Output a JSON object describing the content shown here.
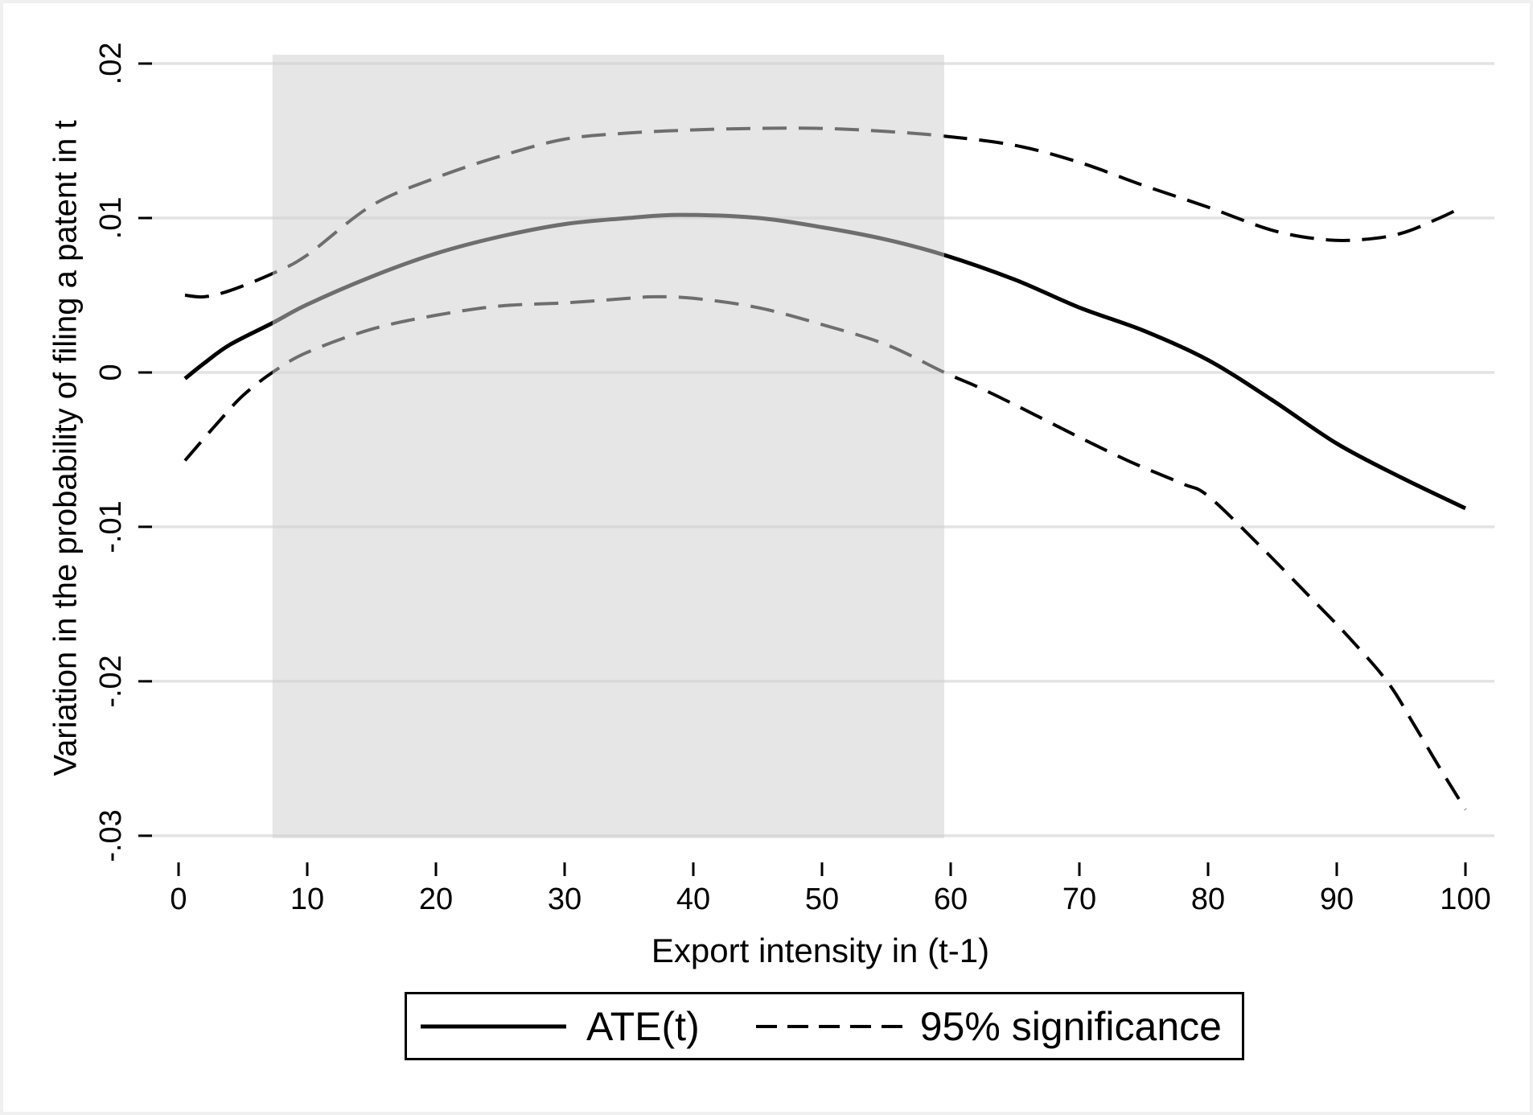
{
  "figure": {
    "y_axis": {
      "title": "Variation in the probability of filing a patent in t",
      "tick_labels": [
        ".02",
        ".01",
        "0",
        "-.01",
        "-.02",
        "-.03"
      ],
      "tick_values": [
        0.02,
        0.01,
        0,
        -0.01,
        -0.02,
        -0.03
      ]
    },
    "x_axis": {
      "title": "Export intensity in (t-1)",
      "tick_labels": [
        "0",
        "10",
        "20",
        "30",
        "40",
        "50",
        "60",
        "70",
        "80",
        "90",
        "100"
      ],
      "tick_values": [
        0,
        10,
        20,
        30,
        40,
        50,
        60,
        70,
        80,
        90,
        100
      ]
    },
    "legend": {
      "entries": [
        {
          "label": "ATE(t)",
          "style": "solid"
        },
        {
          "label": "95% significance",
          "style": "dashed"
        }
      ]
    },
    "colors": {
      "line": "#000000",
      "grid": "#e3e3e3",
      "frame": "#f0f0f0",
      "shade": "#e6e6e6",
      "shade_overlay": "rgba(208,208,208,0.53)"
    }
  },
  "chart_data": {
    "type": "line",
    "title": "",
    "xlabel": "Export intensity in (t-1)",
    "ylabel": "Variation in the probability of filing a patent in t",
    "xlim": [
      -2.5,
      102.25
    ],
    "ylim": [
      -0.03016,
      0.02057
    ],
    "grid": "horizontal",
    "legend_position": "bottom-center",
    "shaded_band_x": [
      7.3,
      59.5
    ],
    "x_ticks": [
      0,
      10,
      20,
      30,
      40,
      50,
      60,
      70,
      80,
      90,
      100
    ],
    "y_ticks": [
      0.02,
      0.01,
      0,
      -0.01,
      -0.02,
      -0.03
    ],
    "series": [
      {
        "name": "ATE(t)",
        "style": "solid",
        "x": [
          0.5,
          2,
          4,
          7.3,
          10,
          15,
          20,
          25,
          30,
          35,
          39,
          45,
          50,
          55,
          59.5,
          65,
          70,
          75,
          80,
          85,
          90,
          95,
          100
        ],
        "y": [
          -0.0004,
          0.0006,
          0.0018,
          0.0032,
          0.0044,
          0.0062,
          0.0077,
          0.0088,
          0.0096,
          0.01,
          0.0102,
          0.01,
          0.0094,
          0.0086,
          0.0076,
          0.006,
          0.0042,
          0.0027,
          0.0008,
          -0.0018,
          -0.0046,
          -0.0068,
          -0.0088
        ]
      },
      {
        "name": "95% significance (upper band)",
        "style": "dashed",
        "x": [
          0.5,
          2,
          4,
          7.3,
          10,
          15,
          20,
          25,
          30,
          35,
          40,
          45,
          50,
          55,
          59.5,
          65,
          70,
          75,
          80,
          85,
          89,
          92,
          95,
          98,
          99.5
        ],
        "y": [
          0.005,
          0.0049,
          0.0053,
          0.0064,
          0.0076,
          0.0108,
          0.0126,
          0.014,
          0.0151,
          0.0155,
          0.0157,
          0.0158,
          0.0158,
          0.0156,
          0.0153,
          0.0147,
          0.0136,
          0.0121,
          0.0107,
          0.0092,
          0.0086,
          0.0086,
          0.009,
          0.01,
          0.0106
        ]
      },
      {
        "name": "95% significance (lower band)",
        "style": "dashed",
        "x": [
          0.5,
          3,
          5,
          7.3,
          10,
          15,
          20,
          25,
          30,
          35,
          37,
          40,
          45,
          50,
          55,
          59.5,
          62,
          65,
          70,
          74,
          78,
          80,
          84,
          88,
          91,
          94,
          96,
          98,
          100
        ],
        "y": [
          -0.0057,
          -0.0033,
          -0.0015,
          0.0,
          0.0013,
          0.0028,
          0.0037,
          0.0043,
          0.0045,
          0.0048,
          0.0049,
          0.0048,
          0.0042,
          0.0031,
          0.0018,
          0.0,
          -0.0009,
          -0.0021,
          -0.0042,
          -0.0058,
          -0.0072,
          -0.008,
          -0.0112,
          -0.0146,
          -0.0172,
          -0.0201,
          -0.0228,
          -0.0256,
          -0.0283
        ]
      }
    ]
  }
}
